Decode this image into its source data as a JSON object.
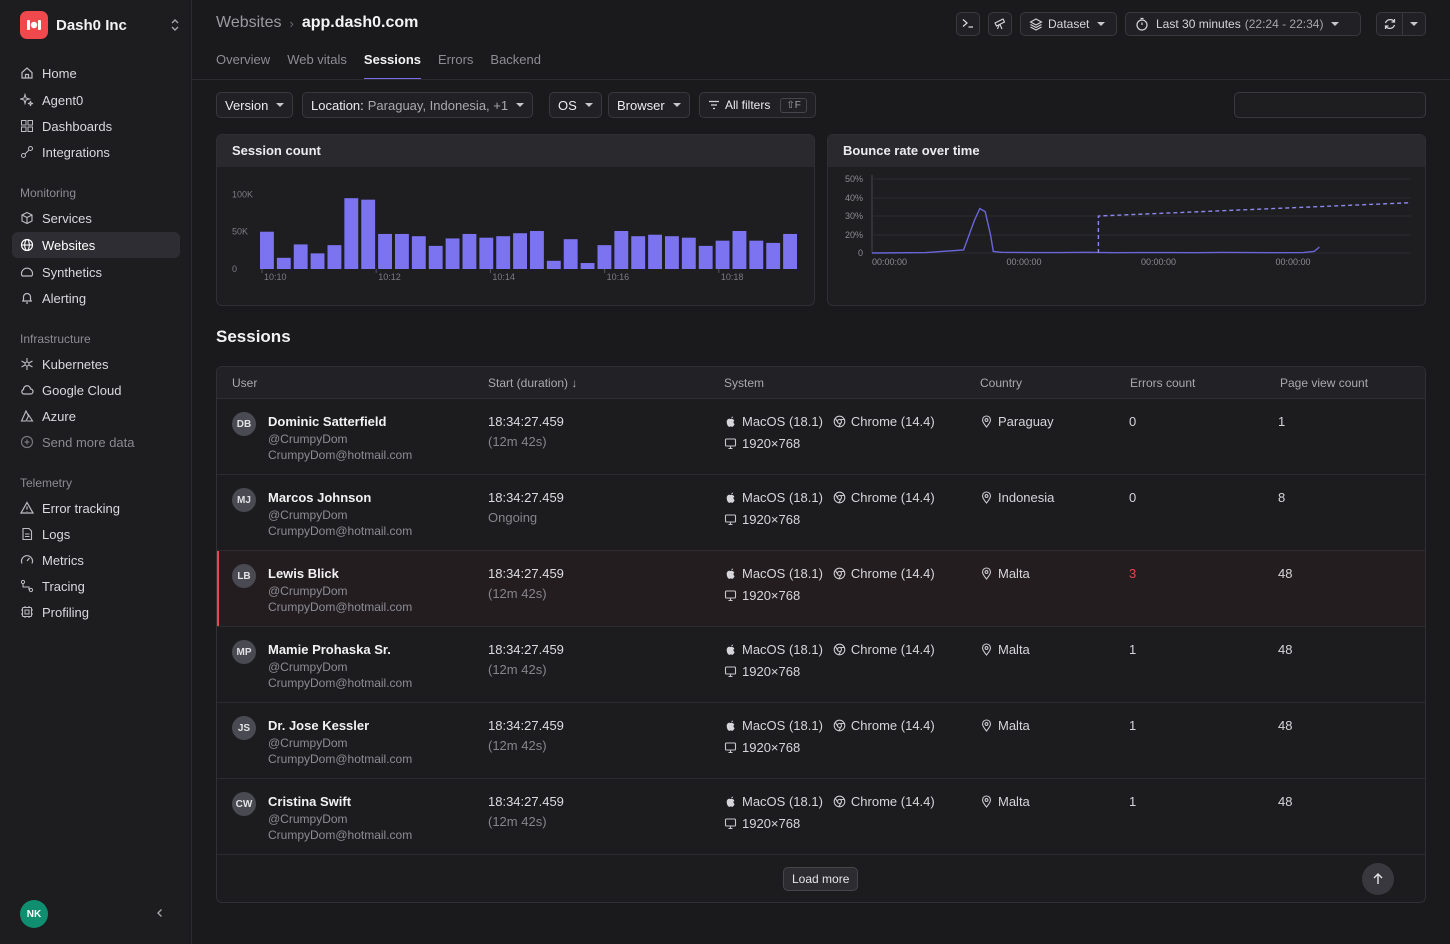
{
  "org": {
    "name": "Dash0 Inc"
  },
  "nav": {
    "top": [
      {
        "label": "Home",
        "icon": "home-icon"
      },
      {
        "label": "Agent0",
        "icon": "sparkle-icon"
      },
      {
        "label": "Dashboards",
        "icon": "dashboards-icon"
      },
      {
        "label": "Integrations",
        "icon": "integrations-icon"
      }
    ],
    "monitoring_label": "Monitoring",
    "monitoring": [
      {
        "label": "Services",
        "icon": "cube-icon"
      },
      {
        "label": "Websites",
        "icon": "globe-icon",
        "active": true
      },
      {
        "label": "Synthetics",
        "icon": "synthetics-icon"
      },
      {
        "label": "Alerting",
        "icon": "bell-icon"
      }
    ],
    "infrastructure_label": "Infrastructure",
    "infrastructure": [
      {
        "label": "Kubernetes",
        "icon": "kubernetes-icon"
      },
      {
        "label": "Google Cloud",
        "icon": "google-cloud-icon"
      },
      {
        "label": "Azure",
        "icon": "azure-icon"
      },
      {
        "label": "Send more data",
        "icon": "plus-circle-icon"
      }
    ],
    "telemetry_label": "Telemetry",
    "telemetry": [
      {
        "label": "Error tracking",
        "icon": "warning-icon"
      },
      {
        "label": "Logs",
        "icon": "logs-icon"
      },
      {
        "label": "Metrics",
        "icon": "gauge-icon"
      },
      {
        "label": "Tracing",
        "icon": "tracing-icon"
      },
      {
        "label": "Profiling",
        "icon": "profiling-icon"
      }
    ]
  },
  "user": {
    "initials": "NK"
  },
  "header": {
    "breadcrumb_parent": "Websites",
    "breadcrumb_current": "app.dash0.com",
    "dataset_label": "Dataset",
    "time_label": "Last 30 minutes",
    "time_range": "(22:24 - 22:34)"
  },
  "tabs": [
    "Overview",
    "Web vitals",
    "Sessions",
    "Errors",
    "Backend"
  ],
  "active_tab": "Sessions",
  "filters": {
    "version": "Version",
    "location_label": "Location:",
    "location_value": "Paraguay, Indonesia, +1",
    "os": "OS",
    "browser": "Browser",
    "all_filters": "All filters",
    "shortcut": "⇧F",
    "search_placeholder": ""
  },
  "charts_titles": {
    "session_count": "Session count",
    "bounce_rate": "Bounce rate over time"
  },
  "chart_data": [
    {
      "type": "bar",
      "title": "Session count",
      "y_ticks": [
        "100K",
        "50K",
        "0"
      ],
      "ylim": [
        0,
        110000
      ],
      "x_ticks": [
        "10:10",
        "10:12",
        "10:14",
        "10:16",
        "10:18"
      ],
      "color": "#7b73f0",
      "values": [
        50000,
        15000,
        33000,
        21000,
        32000,
        95000,
        93000,
        47000,
        47000,
        44000,
        31000,
        41000,
        47000,
        42000,
        44000,
        48000,
        51000,
        11000,
        40000,
        8000,
        32000,
        51000,
        44000,
        46000,
        44000,
        42000,
        31000,
        38000,
        51000,
        38000,
        35000,
        47000
      ]
    },
    {
      "type": "line",
      "title": "Bounce rate over time",
      "y_ticks": [
        "50%",
        "40%",
        "30%",
        "20%",
        "0"
      ],
      "ylim": [
        0,
        50
      ],
      "x_ticks": [
        "00:00:00",
        "00:00:00",
        "00:00:00",
        "00:00:00"
      ],
      "series": [
        {
          "style": "solid",
          "color": "#6a65d8",
          "x": [
            0,
            0.1,
            0.17,
            0.19,
            0.2,
            0.21,
            0.22,
            0.225,
            0.24,
            0.3,
            0.35,
            0.4,
            0.45,
            0.5,
            0.55,
            0.6,
            0.65,
            0.7,
            0.75,
            0.8,
            0.82,
            0.83
          ],
          "values": [
            0,
            0.3,
            2,
            22,
            30,
            28,
            12,
            1,
            0.5,
            0.3,
            0.3,
            0.5,
            0.2,
            0.3,
            0.3,
            0.2,
            0.4,
            0.3,
            0.2,
            0.3,
            1,
            4
          ]
        },
        {
          "style": "dashed",
          "color": "#8d87ec",
          "x": [
            0.42,
            0.42,
            1.0
          ],
          "values": [
            0,
            25,
            34
          ]
        }
      ]
    }
  ],
  "sessions": {
    "title": "Sessions",
    "columns": {
      "user": "User",
      "start": "Start (duration) ↓",
      "system": "System",
      "country": "Country",
      "errors": "Errors count",
      "pages": "Page view count"
    },
    "rows": [
      {
        "initials": "DB",
        "name": "Dominic Satterfield",
        "handle": "@CrumpyDom",
        "email": "CrumpyDom@hotmail.com",
        "start": "18:34:27.459",
        "duration": "(12m 42s)",
        "os": "MacOS (18.1)",
        "browser": "Chrome (14.4)",
        "resolution": "1920×768",
        "country": "Paraguay",
        "errors": "0",
        "pages": "1"
      },
      {
        "initials": "MJ",
        "name": "Marcos Johnson",
        "handle": "@CrumpyDom",
        "email": "CrumpyDom@hotmail.com",
        "start": "18:34:27.459",
        "duration": "Ongoing",
        "os": "MacOS (18.1)",
        "browser": "Chrome (14.4)",
        "resolution": "1920×768",
        "country": "Indonesia",
        "errors": "0",
        "pages": "8"
      },
      {
        "initials": "LB",
        "name": "Lewis Blick",
        "handle": "@CrumpyDom",
        "email": "CrumpyDom@hotmail.com",
        "start": "18:34:27.459",
        "duration": "(12m 42s)",
        "os": "MacOS (18.1)",
        "browser": "Chrome (14.4)",
        "resolution": "1920×768",
        "country": "Malta",
        "errors": "3",
        "pages": "48",
        "highlight": true
      },
      {
        "initials": "MP",
        "name": "Mamie Prohaska Sr.",
        "handle": "@CrumpyDom",
        "email": "CrumpyDom@hotmail.com",
        "start": "18:34:27.459",
        "duration": "(12m 42s)",
        "os": "MacOS (18.1)",
        "browser": "Chrome (14.4)",
        "resolution": "1920×768",
        "country": "Malta",
        "errors": "1",
        "pages": "48"
      },
      {
        "initials": "JS",
        "name": "Dr. Jose Kessler",
        "handle": "@CrumpyDom",
        "email": "CrumpyDom@hotmail.com",
        "start": "18:34:27.459",
        "duration": "(12m 42s)",
        "os": "MacOS (18.1)",
        "browser": "Chrome (14.4)",
        "resolution": "1920×768",
        "country": "Malta",
        "errors": "1",
        "pages": "48"
      },
      {
        "initials": "CW",
        "name": "Cristina Swift",
        "handle": "@CrumpyDom",
        "email": "CrumpyDom@hotmail.com",
        "start": "18:34:27.459",
        "duration": "(12m 42s)",
        "os": "MacOS (18.1)",
        "browser": "Chrome (14.4)",
        "resolution": "1920×768",
        "country": "Malta",
        "errors": "1",
        "pages": "48"
      }
    ],
    "load_more": "Load more"
  },
  "colors": {
    "accent": "#7b6cf0",
    "error": "#e5484d",
    "brand": "#f0494d"
  }
}
